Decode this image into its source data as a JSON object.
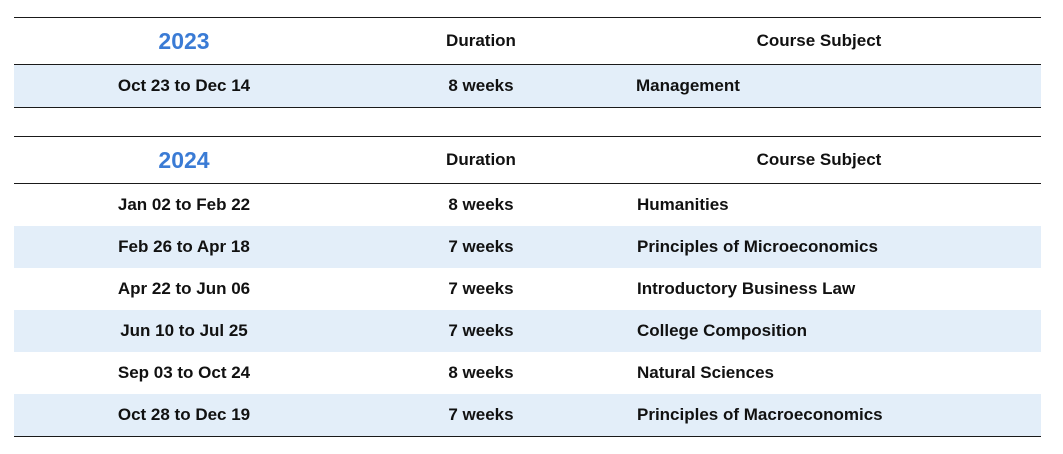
{
  "tables": [
    {
      "year": "2023",
      "duration_header": "Duration",
      "subject_header": "Course Subject",
      "rows": [
        {
          "dates": "Oct 23 to Dec 14",
          "duration": "8 weeks",
          "subject": "Management"
        }
      ]
    },
    {
      "year": "2024",
      "duration_header": "Duration",
      "subject_header": "Course Subject",
      "rows": [
        {
          "dates": "Jan 02 to Feb 22",
          "duration": "8 weeks",
          "subject": "Humanities"
        },
        {
          "dates": "Feb 26 to Apr 18",
          "duration": "7 weeks",
          "subject": "Principles of Microeconomics"
        },
        {
          "dates": "Apr 22 to Jun 06",
          "duration": "7 weeks",
          "subject": "Introductory Business Law"
        },
        {
          "dates": "Jun 10 to Jul 25",
          "duration": "7 weeks",
          "subject": "College Composition"
        },
        {
          "dates": "Sep 03 to Oct 24",
          "duration": "8 weeks",
          "subject": "Natural Sciences"
        },
        {
          "dates": "Oct 28 to Dec 19",
          "duration": "7 weeks",
          "subject": "Principles of Macroeconomics"
        }
      ]
    }
  ],
  "colors": {
    "year_text": "#3a7bd5",
    "row_shade": "#e3eef9",
    "rule": "#1a1a1a"
  }
}
